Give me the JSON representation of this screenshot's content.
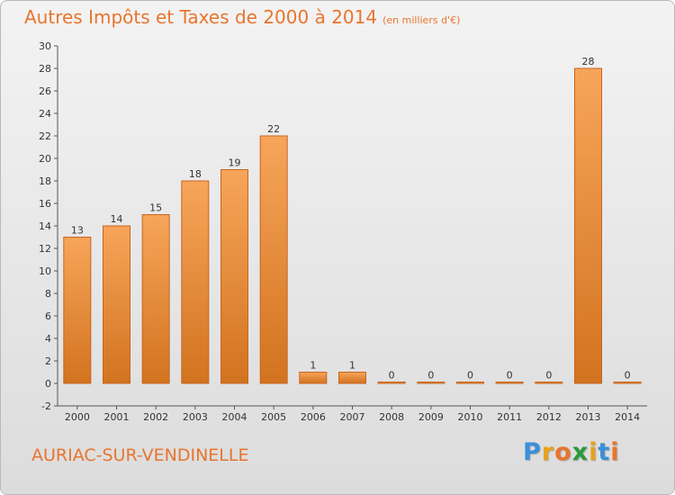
{
  "chart_data": {
    "type": "bar",
    "title": "Autres Impôts et Taxes de 2000 à 2014",
    "subtitle": "(en milliers d'€)",
    "categories": [
      "2000",
      "2001",
      "2002",
      "2003",
      "2004",
      "2005",
      "2006",
      "2007",
      "2008",
      "2009",
      "2010",
      "2011",
      "2012",
      "2013",
      "2014"
    ],
    "values": [
      13,
      14,
      15,
      18,
      19,
      22,
      1,
      1,
      0,
      0,
      0,
      0,
      0,
      28,
      0
    ],
    "ylim": [
      -2,
      30
    ],
    "yticks": [
      -2,
      0,
      2,
      4,
      6,
      8,
      10,
      12,
      14,
      16,
      18,
      20,
      22,
      24,
      26,
      28,
      30
    ],
    "grid": false,
    "bar_color": "#f0923e",
    "bar_edge_color": "#c8651e"
  },
  "footer": {
    "commune": "AURIAC-SUR-VENDINELLE",
    "logo_letters": [
      "P",
      "r",
      "o",
      "x",
      "i",
      "t",
      "i"
    ],
    "logo_colors": [
      "#3a8fd8",
      "#e8a21b",
      "#e8752e",
      "#2a9b3a",
      "#e8a21b",
      "#3a8fd8",
      "#e8752e"
    ]
  }
}
